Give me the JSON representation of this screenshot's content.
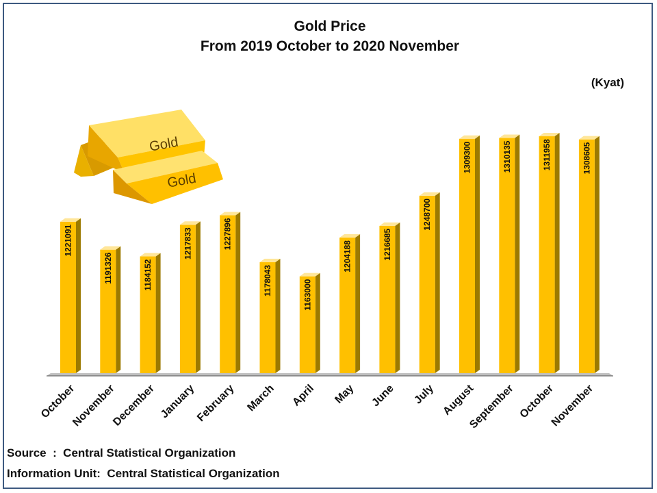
{
  "chart_data": {
    "type": "bar",
    "title": "Gold Price",
    "subtitle": "From 2019 October  to 2020 November",
    "unit": "(Kyat)",
    "categories": [
      "October",
      "November",
      "December",
      "January",
      "February",
      "March",
      "April",
      "May",
      "June",
      "July",
      "August",
      "September",
      "October",
      "November"
    ],
    "values": [
      1221091,
      1191326,
      1184152,
      1217833,
      1227896,
      1178043,
      1163000,
      1204188,
      1216685,
      1248700,
      1309300,
      1310135,
      1311958,
      1308605
    ],
    "value_labels": [
      "1221091",
      "1191326",
      "1184152",
      "1217833",
      "1227896",
      "1178043",
      "1163000",
      "1204188",
      "1216685",
      "1248700",
      "1309300",
      "1310135",
      "1311958",
      "1308605"
    ],
    "ylim": [
      1060000,
      1320000
    ],
    "grid": false,
    "bar_color": "#FFC000",
    "xlabel": "",
    "ylabel": ""
  },
  "decoration": {
    "gold_bar_label_1": "Gold",
    "gold_bar_label_2": "Gold"
  },
  "footer": {
    "source": "Source  :  Central Statistical Organization",
    "information_unit": "Information Unit:  Central Statistical Organization"
  }
}
